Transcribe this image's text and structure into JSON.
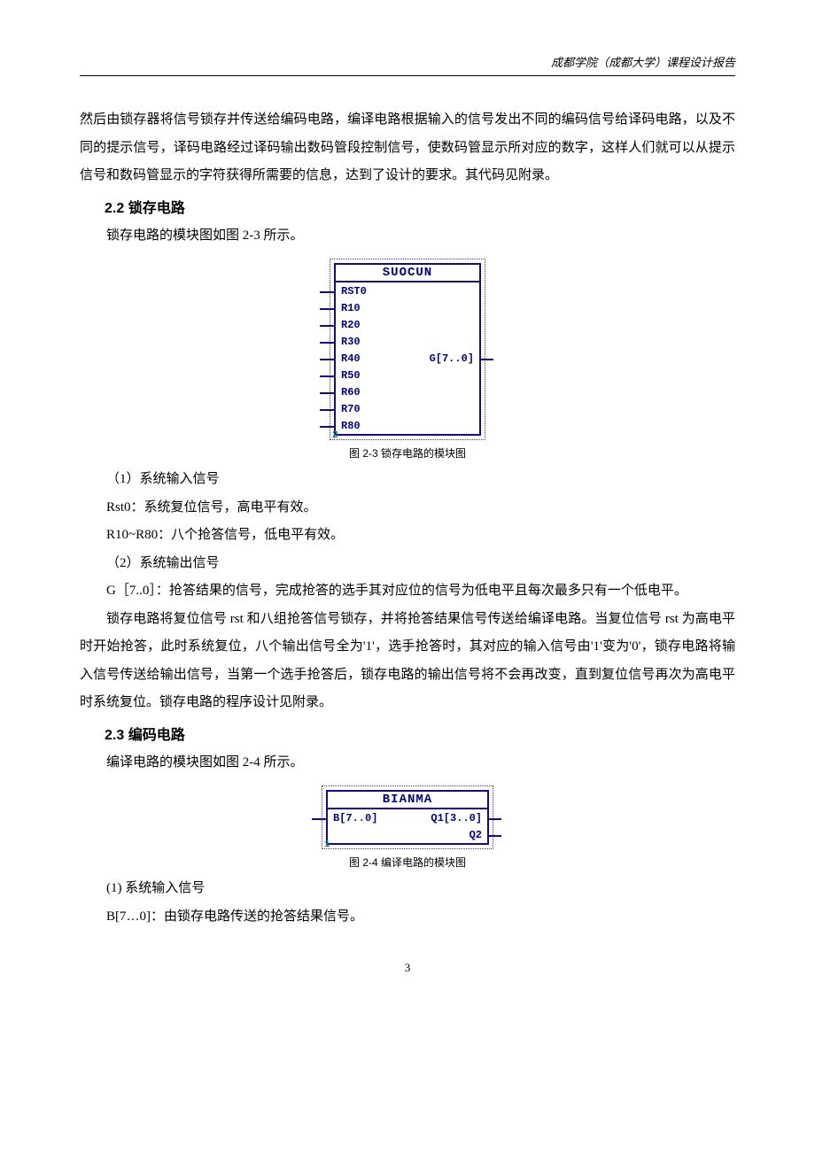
{
  "header": "成都学院（成都大学）课程设计报告",
  "para1": "然后由锁存器将信号锁存并传送给编码电路，编译电路根据输入的信号发出不同的编码信号给译码电路，以及不同的提示信号，译码电路经过译码输出数码管段控制信号，使数码管显示所对应的数字，这样人们就可以从提示信号和数码管显示的字符获得所需要的信息，达到了设计的要求。其代码见附录。",
  "section22": "2.2 锁存电路",
  "para2": "锁存电路的模块图如图 2-3 所示。",
  "block1": {
    "title": "SUOCUN",
    "inputs": [
      "RST0",
      "R10",
      "R20",
      "R30",
      "R40",
      "R50",
      "R60",
      "R70",
      "R80"
    ],
    "output": "G[7..0]",
    "output_row": 4,
    "corner": "2"
  },
  "fig1_caption": "图 2-3 锁存电路的模块图",
  "para3": "（1）系统输入信号",
  "para4": "Rst0：系统复位信号，高电平有效。",
  "para5": "R10~R80：八个抢答信号，低电平有效。",
  "para6": "（2）系统输出信号",
  "para7": "G［7..0］：抢答结果的信号，完成抢答的选手其对应位的信号为低电平且每次最多只有一个低电平。",
  "para8": "锁存电路将复位信号 rst 和八组抢答信号锁存，并将抢答结果信号传送给编译电路。当复位信号 rst 为高电平时开始抢答，此时系统复位，八个输出信号全为'1'，选手抢答时，其对应的输入信号由'1'变为'0'，锁存电路将输入信号传送给输出信号，当第一个选手抢答后，锁存电路的输出信号将不会再改变，直到复位信号再次为高电平时系统复位。锁存电路的程序设计见附录。",
  "section23": "2.3 编码电路",
  "para9": "编译电路的模块图如图 2-4 所示。",
  "block2": {
    "title": "BIANMA",
    "input": "B[7..0]",
    "output1": "Q1[3..0]",
    "output2": "Q2",
    "corner": "1"
  },
  "fig2_caption": "图 2-4 编译电路的模块图",
  "para10": "(1) 系统输入信号",
  "para11": "B[7…0]：由锁存电路传送的抢答结果信号。",
  "pagenum": "3"
}
